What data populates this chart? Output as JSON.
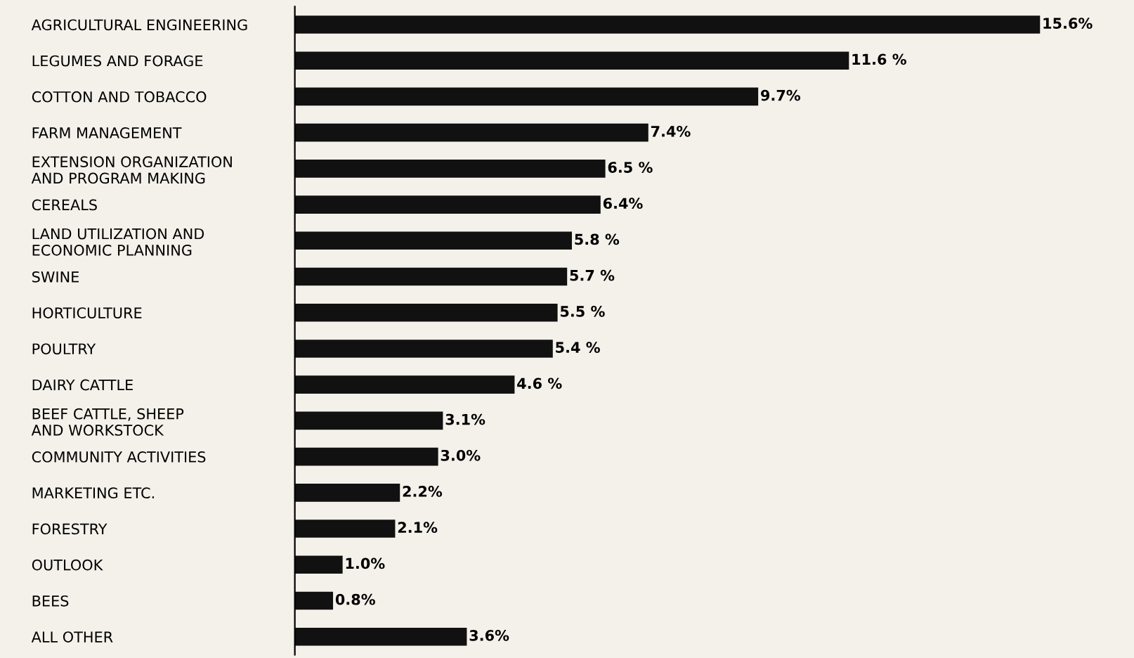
{
  "chart_data": {
    "type": "bar",
    "orientation": "horizontal",
    "categories": [
      "AGRICULTURAL ENGINEERING",
      "LEGUMES AND FORAGE",
      "COTTON AND TOBACCO",
      "FARM MANAGEMENT",
      "EXTENSION ORGANIZATION\nAND PROGRAM MAKING",
      "CEREALS",
      "LAND UTILIZATION AND\nECONOMIC PLANNING",
      "SWINE",
      "HORTICULTURE",
      "POULTRY",
      "DAIRY CATTLE",
      "BEEF CATTLE, SHEEP\nAND WORKSTOCK",
      "COMMUNITY ACTIVITIES",
      "MARKETING ETC.",
      "FORESTRY",
      "OUTLOOK",
      "BEES",
      "ALL OTHER"
    ],
    "values": [
      15.6,
      11.6,
      9.7,
      7.4,
      6.5,
      6.4,
      5.8,
      5.7,
      5.5,
      5.4,
      4.6,
      3.1,
      3.0,
      2.2,
      2.1,
      1.0,
      0.8,
      3.6
    ],
    "value_labels": [
      "15.6%",
      "11.6 %",
      "9.7%",
      "7.4%",
      "6.5 %",
      "6.4%",
      "5.8 %",
      "5.7 %",
      "5.5 %",
      "5.4 %",
      "4.6 %",
      "3.1%",
      "3.0%",
      "2.2%",
      "2.1%",
      "1.0%",
      "0.8%",
      "3.6%"
    ],
    "color": "#111111",
    "tick_labels": "y",
    "grid": false,
    "legend": false
  }
}
